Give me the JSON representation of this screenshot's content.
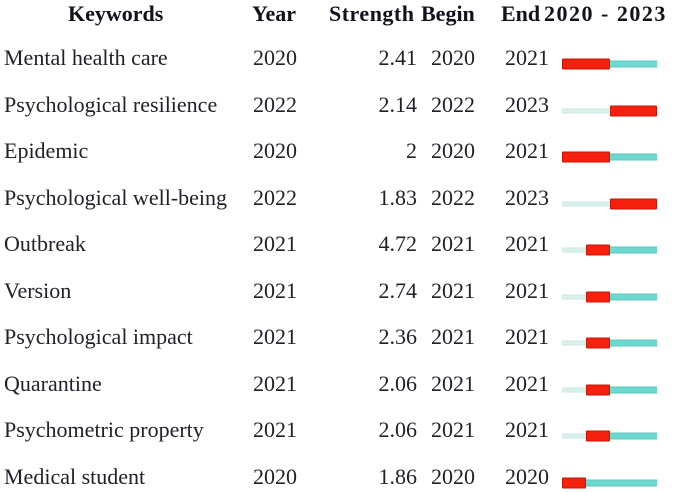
{
  "header": {
    "keywords": "Keywords",
    "year": "Year",
    "strength": "Strength",
    "begin": "Begin",
    "end": "End",
    "range": "2020 - 2023"
  },
  "timeline": {
    "start_year": 2020,
    "end_year": 2023
  },
  "colors": {
    "burst": "#f5200e",
    "burst_border": "#c71607",
    "after_burst": "#6fd8cf",
    "after_burst_border": "#5cc9c0",
    "before_burst": "#daf0ec",
    "before_burst_border": "#cbe8e3",
    "text": "#20222b",
    "header_text": "#10121c"
  },
  "rows": [
    {
      "keyword": "Mental health care",
      "year": "2020",
      "strength": "2.41",
      "begin": "2020",
      "end": "2021"
    },
    {
      "keyword": "Psychological resilience",
      "year": "2022",
      "strength": "2.14",
      "begin": "2022",
      "end": "2023"
    },
    {
      "keyword": "Epidemic",
      "year": "2020",
      "strength": "2",
      "begin": "2020",
      "end": "2021"
    },
    {
      "keyword": "Psychological well-being",
      "year": "2022",
      "strength": "1.83",
      "begin": "2022",
      "end": "2023"
    },
    {
      "keyword": "Outbreak",
      "year": "2021",
      "strength": "4.72",
      "begin": "2021",
      "end": "2021"
    },
    {
      "keyword": "Version",
      "year": "2021",
      "strength": "2.74",
      "begin": "2021",
      "end": "2021"
    },
    {
      "keyword": "Psychological impact",
      "year": "2021",
      "strength": "2.36",
      "begin": "2021",
      "end": "2021"
    },
    {
      "keyword": "Quarantine",
      "year": "2021",
      "strength": "2.06",
      "begin": "2021",
      "end": "2021"
    },
    {
      "keyword": "Psychometric property",
      "year": "2021",
      "strength": "2.06",
      "begin": "2021",
      "end": "2021"
    },
    {
      "keyword": "Medical student",
      "year": "2020",
      "strength": "1.86",
      "begin": "2020",
      "end": "2020"
    }
  ],
  "chart_data": {
    "type": "table",
    "columns": [
      "Keywords",
      "Year",
      "Strength",
      "Begin",
      "End",
      "2020 - 2023"
    ],
    "timeline_range": [
      2020,
      2023
    ],
    "rows": [
      [
        "Mental health care",
        2020,
        2.41,
        2020,
        2021
      ],
      [
        "Psychological resilience",
        2022,
        2.14,
        2022,
        2023
      ],
      [
        "Epidemic",
        2020,
        2.0,
        2020,
        2021
      ],
      [
        "Psychological well-being",
        2022,
        1.83,
        2022,
        2023
      ],
      [
        "Outbreak",
        2021,
        4.72,
        2021,
        2021
      ],
      [
        "Version",
        2021,
        2.74,
        2021,
        2021
      ],
      [
        "Psychological impact",
        2021,
        2.36,
        2021,
        2021
      ],
      [
        "Quarantine",
        2021,
        2.06,
        2021,
        2021
      ],
      [
        "Psychometric property",
        2021,
        2.06,
        2021,
        2021
      ],
      [
        "Medical student",
        2020,
        1.86,
        2020,
        2020
      ]
    ],
    "legend": {
      "burst_segment_color_meaning": "years within citation burst (Begin–End)",
      "before_segment_color_meaning": "years before burst",
      "after_segment_color_meaning": "years after burst"
    }
  }
}
